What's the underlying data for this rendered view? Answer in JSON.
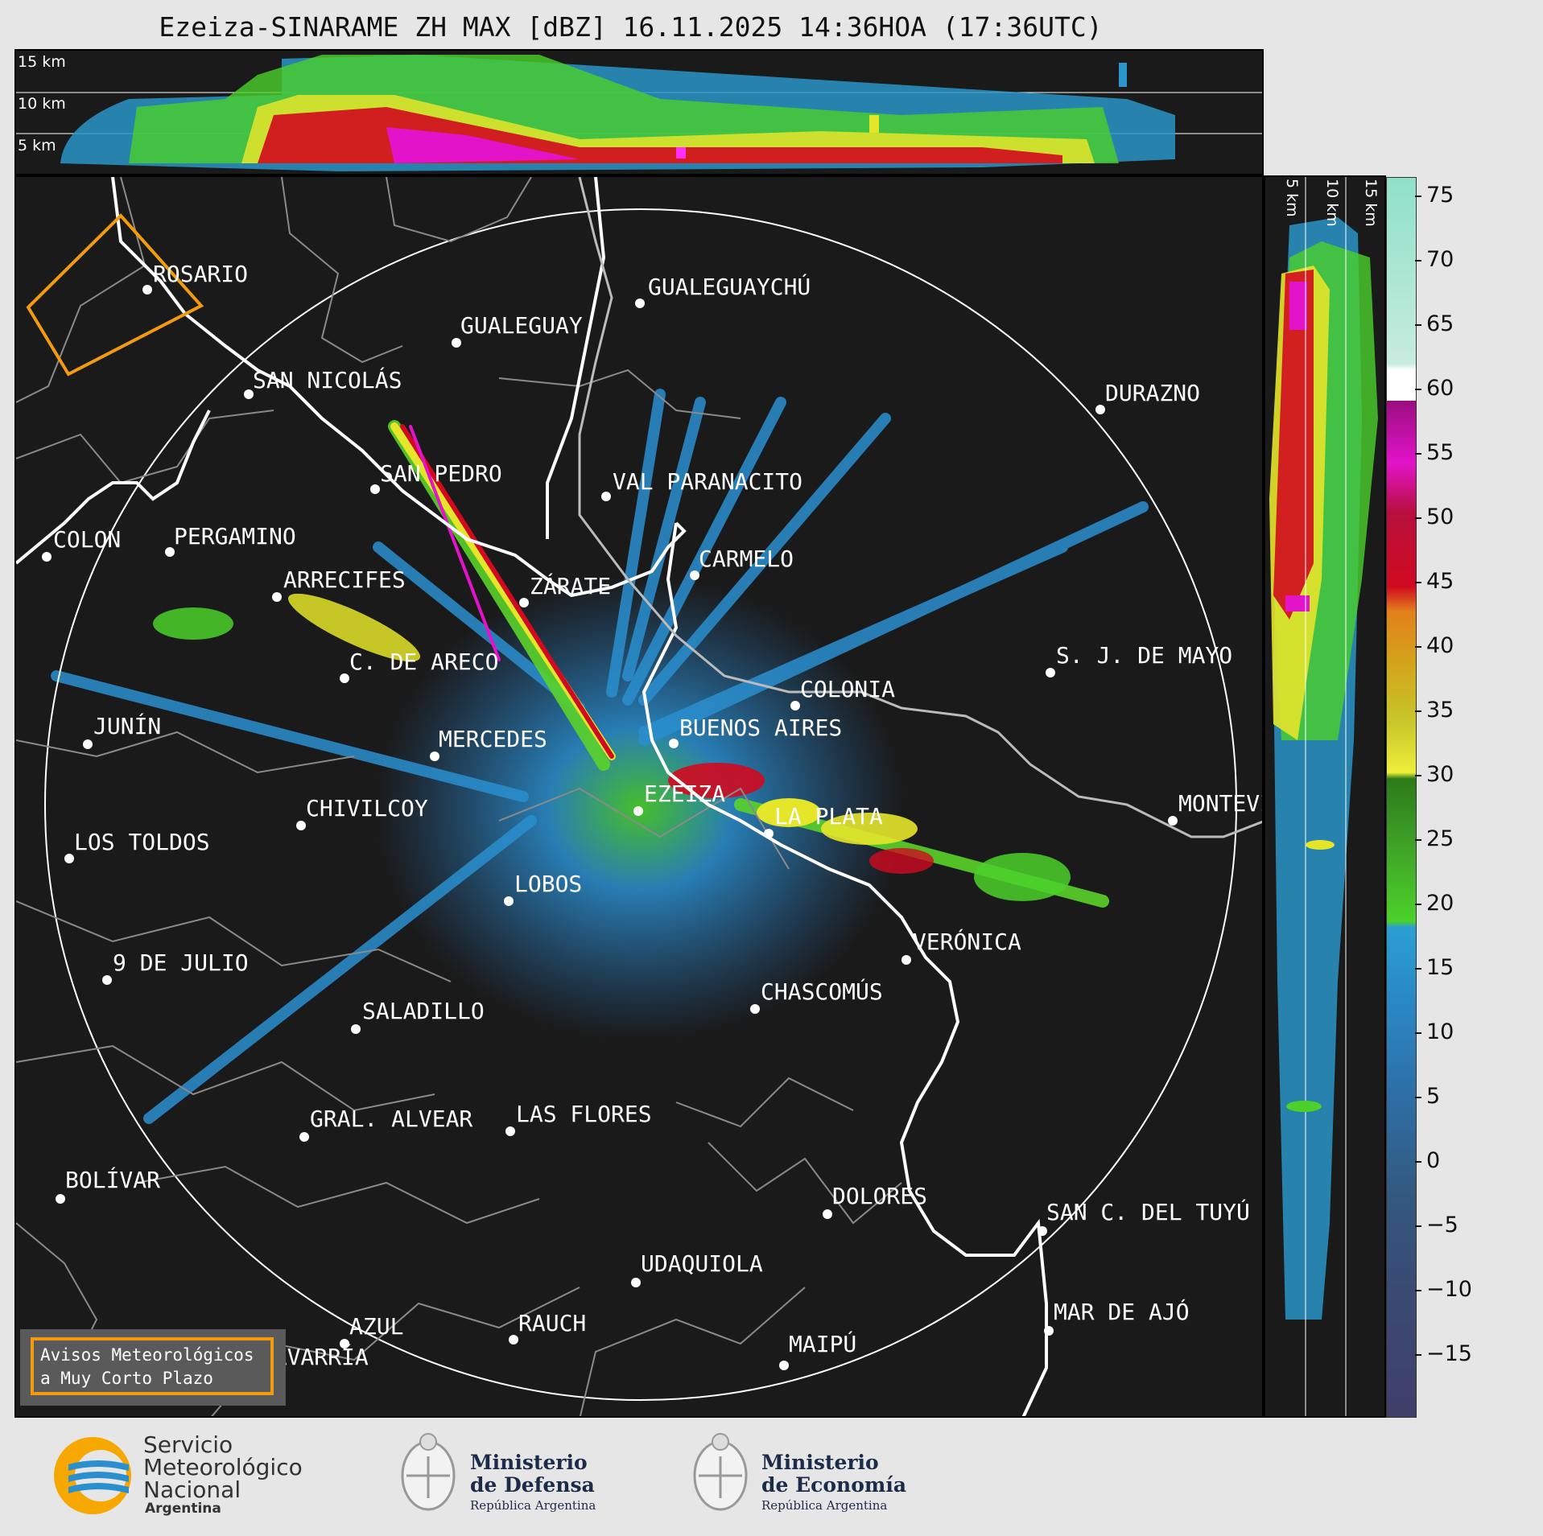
{
  "title": "Ezeiza-SINARAME ZH MAX [dBZ] 16.11.2025 14:36HOA (17:36UTC)",
  "altitude_labels_top": [
    "15 km",
    "10 km",
    "5 km"
  ],
  "altitude_labels_side": [
    "5 km",
    "10 km",
    "15 km"
  ],
  "colorbar": {
    "ticks": [
      "75",
      "70",
      "65",
      "60",
      "55",
      "50",
      "45",
      "40",
      "35",
      "30",
      "25",
      "20",
      "15",
      "10",
      "5",
      "0",
      "−5",
      "−10",
      "−15"
    ]
  },
  "cities": [
    {
      "name": "ROSARIO"
    },
    {
      "name": "GUALEGUAYCHÚ"
    },
    {
      "name": "GUALEGUAY"
    },
    {
      "name": "SAN NICOLÁS"
    },
    {
      "name": "DURAZNO"
    },
    {
      "name": "SAN PEDRO"
    },
    {
      "name": "VAL PARANACITO"
    },
    {
      "name": "COLON"
    },
    {
      "name": "PERGAMINO"
    },
    {
      "name": "CARMELO"
    },
    {
      "name": "ARRECIFES"
    },
    {
      "name": "ZÁRATE"
    },
    {
      "name": "C. DE ARECO"
    },
    {
      "name": "S. J. DE MAYO"
    },
    {
      "name": "COLONIA"
    },
    {
      "name": "JUNÍN"
    },
    {
      "name": "MERCEDES"
    },
    {
      "name": "BUENOS AIRES"
    },
    {
      "name": "EZEIZA"
    },
    {
      "name": "CHIVILCOY"
    },
    {
      "name": "LA PLATA"
    },
    {
      "name": "MONTEVIDEO"
    },
    {
      "name": "LOS TOLDOS"
    },
    {
      "name": "LOBOS"
    },
    {
      "name": "VERÓNICA"
    },
    {
      "name": "9 DE JULIO"
    },
    {
      "name": "CHASCOMÚS"
    },
    {
      "name": "SALADILLO"
    },
    {
      "name": "GRAL. ALVEAR"
    },
    {
      "name": "LAS FLORES"
    },
    {
      "name": "BOLÍVAR"
    },
    {
      "name": "DOLORES"
    },
    {
      "name": "SAN C. DEL TUYÚ"
    },
    {
      "name": "UDAQUIOLA"
    },
    {
      "name": "AZUL"
    },
    {
      "name": "RAUCH"
    },
    {
      "name": "OLAVARRÍA"
    },
    {
      "name": "MAR DE AJÓ"
    },
    {
      "name": "MAIPÚ"
    }
  ],
  "warning": {
    "line1": "Avisos Meteorológicos",
    "line2": "a Muy Corto Plazo"
  },
  "footer": {
    "smn": {
      "line1": "Servicio",
      "line2": "Meteorológico",
      "line3": "Nacional",
      "sub": "Argentina"
    },
    "defensa": {
      "line1": "Ministerio",
      "line2": "de Defensa",
      "sub": "República Argentina"
    },
    "economia": {
      "line1": "Ministerio",
      "line2": "de Economía",
      "sub": "República Argentina"
    }
  },
  "colors": {
    "map_bg": "#1a1a1a",
    "warning_border": "#f29b0f",
    "border_lines": "#8a8a8a",
    "coast": "#ffffff"
  }
}
